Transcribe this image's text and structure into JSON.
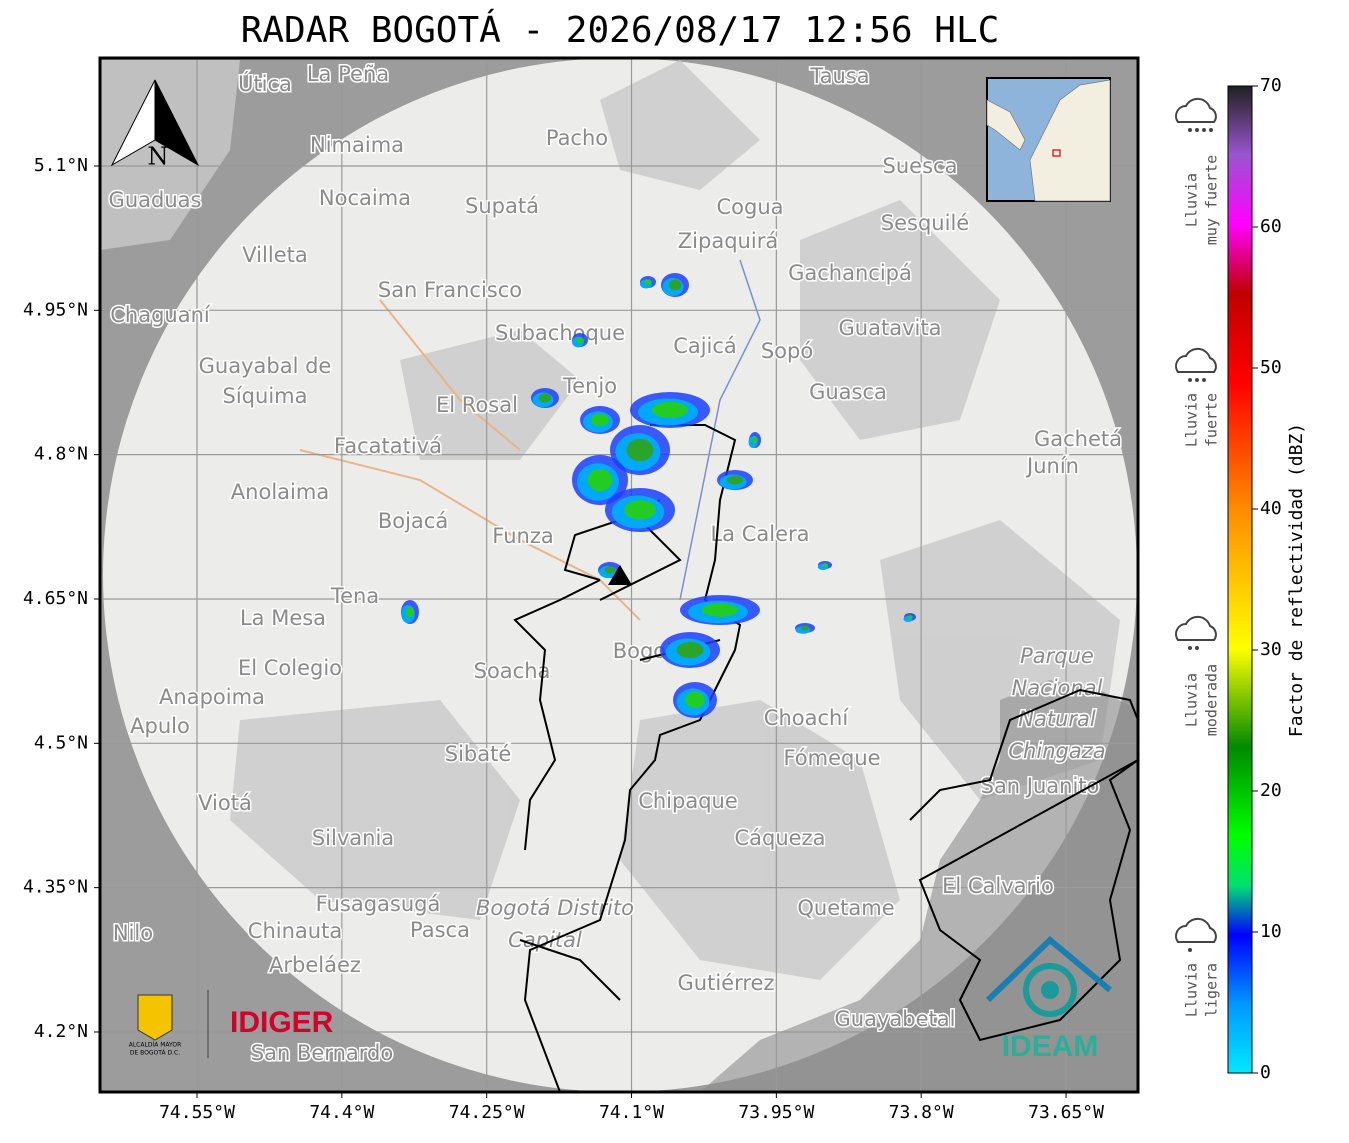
{
  "header": {
    "title": "RADAR BOGOTÁ - 2026/08/17 12:56 HLC"
  },
  "map": {
    "lat_ticks": [
      {
        "value": 5.1,
        "label": "5.1°N"
      },
      {
        "value": 4.95,
        "label": "4.95°N"
      },
      {
        "value": 4.8,
        "label": "4.8°N"
      },
      {
        "value": 4.65,
        "label": "4.65°N"
      },
      {
        "value": 4.5,
        "label": "4.5°N"
      },
      {
        "value": 4.35,
        "label": "4.35°N"
      },
      {
        "value": 4.2,
        "label": "4.2°N"
      }
    ],
    "lon_ticks": [
      {
        "value": -74.55,
        "label": "74.55°W"
      },
      {
        "value": -74.4,
        "label": "74.4°W"
      },
      {
        "value": -74.25,
        "label": "74.25°W"
      },
      {
        "value": -74.1,
        "label": "74.1°W"
      },
      {
        "value": -73.95,
        "label": "73.95°W"
      },
      {
        "value": -73.8,
        "label": "73.8°W"
      },
      {
        "value": -73.65,
        "label": "73.65°W"
      }
    ],
    "grid": true,
    "compass": "N",
    "place_names": [
      "La Peña",
      "Útica",
      "Tausa",
      "Pacho",
      "Nimaima",
      "Guaduas",
      "Nocaima",
      "Supatá",
      "Suesca",
      "Cogua",
      "Sesquilé",
      "Zipaquirá",
      "Villeta",
      "San Francisco",
      "Gachancipá",
      "Chaguaní",
      "Guatavita",
      "Subachoque",
      "Cajicá",
      "Sopó",
      "Guayabal de",
      "Síquima",
      "Tenjo",
      "Guasca",
      "El Rosal",
      "Facatativá",
      "Gachetá",
      "Junín",
      "Anolaima",
      "Bojacá",
      "Funza",
      "La Calera",
      "Tena",
      "La Mesa",
      "Bogotá",
      "Parque",
      "Nacional",
      "Natural",
      "Chingaza",
      "El Colegio",
      "Soacha",
      "Anapoima",
      "Apulo",
      "Choachí",
      "Sibaté",
      "Fómeque",
      "San Juanito",
      "Viotá",
      "Chipaque",
      "Silvania",
      "Cáqueza",
      "El Calvario",
      "Fusagasugá",
      "Bogotá Distrito",
      "Capital",
      "Quetame",
      "Chinauta",
      "Pasca",
      "Arbeláez",
      "Gutiérrez",
      "Guayabetal",
      "San Bernardo",
      "Nilo"
    ]
  },
  "colorbar": {
    "label": "Factor de reflectividad (dBZ)",
    "range": [
      0,
      70
    ],
    "ticks": [
      0,
      10,
      20,
      30,
      40,
      50,
      60,
      70
    ]
  },
  "rain_levels": [
    [
      "Lluvia",
      "muy fuerte"
    ],
    [
      "Lluvia",
      "fuerte"
    ],
    [
      "Lluvia",
      "moderada"
    ],
    [
      "Lluvia",
      "ligera"
    ]
  ],
  "logos": {
    "alcaldia": [
      "ALCALDÍA MAYOR",
      "DE BOGOTÁ D.C."
    ],
    "idiger": "IDIGER",
    "ideam": "IDEAM"
  }
}
